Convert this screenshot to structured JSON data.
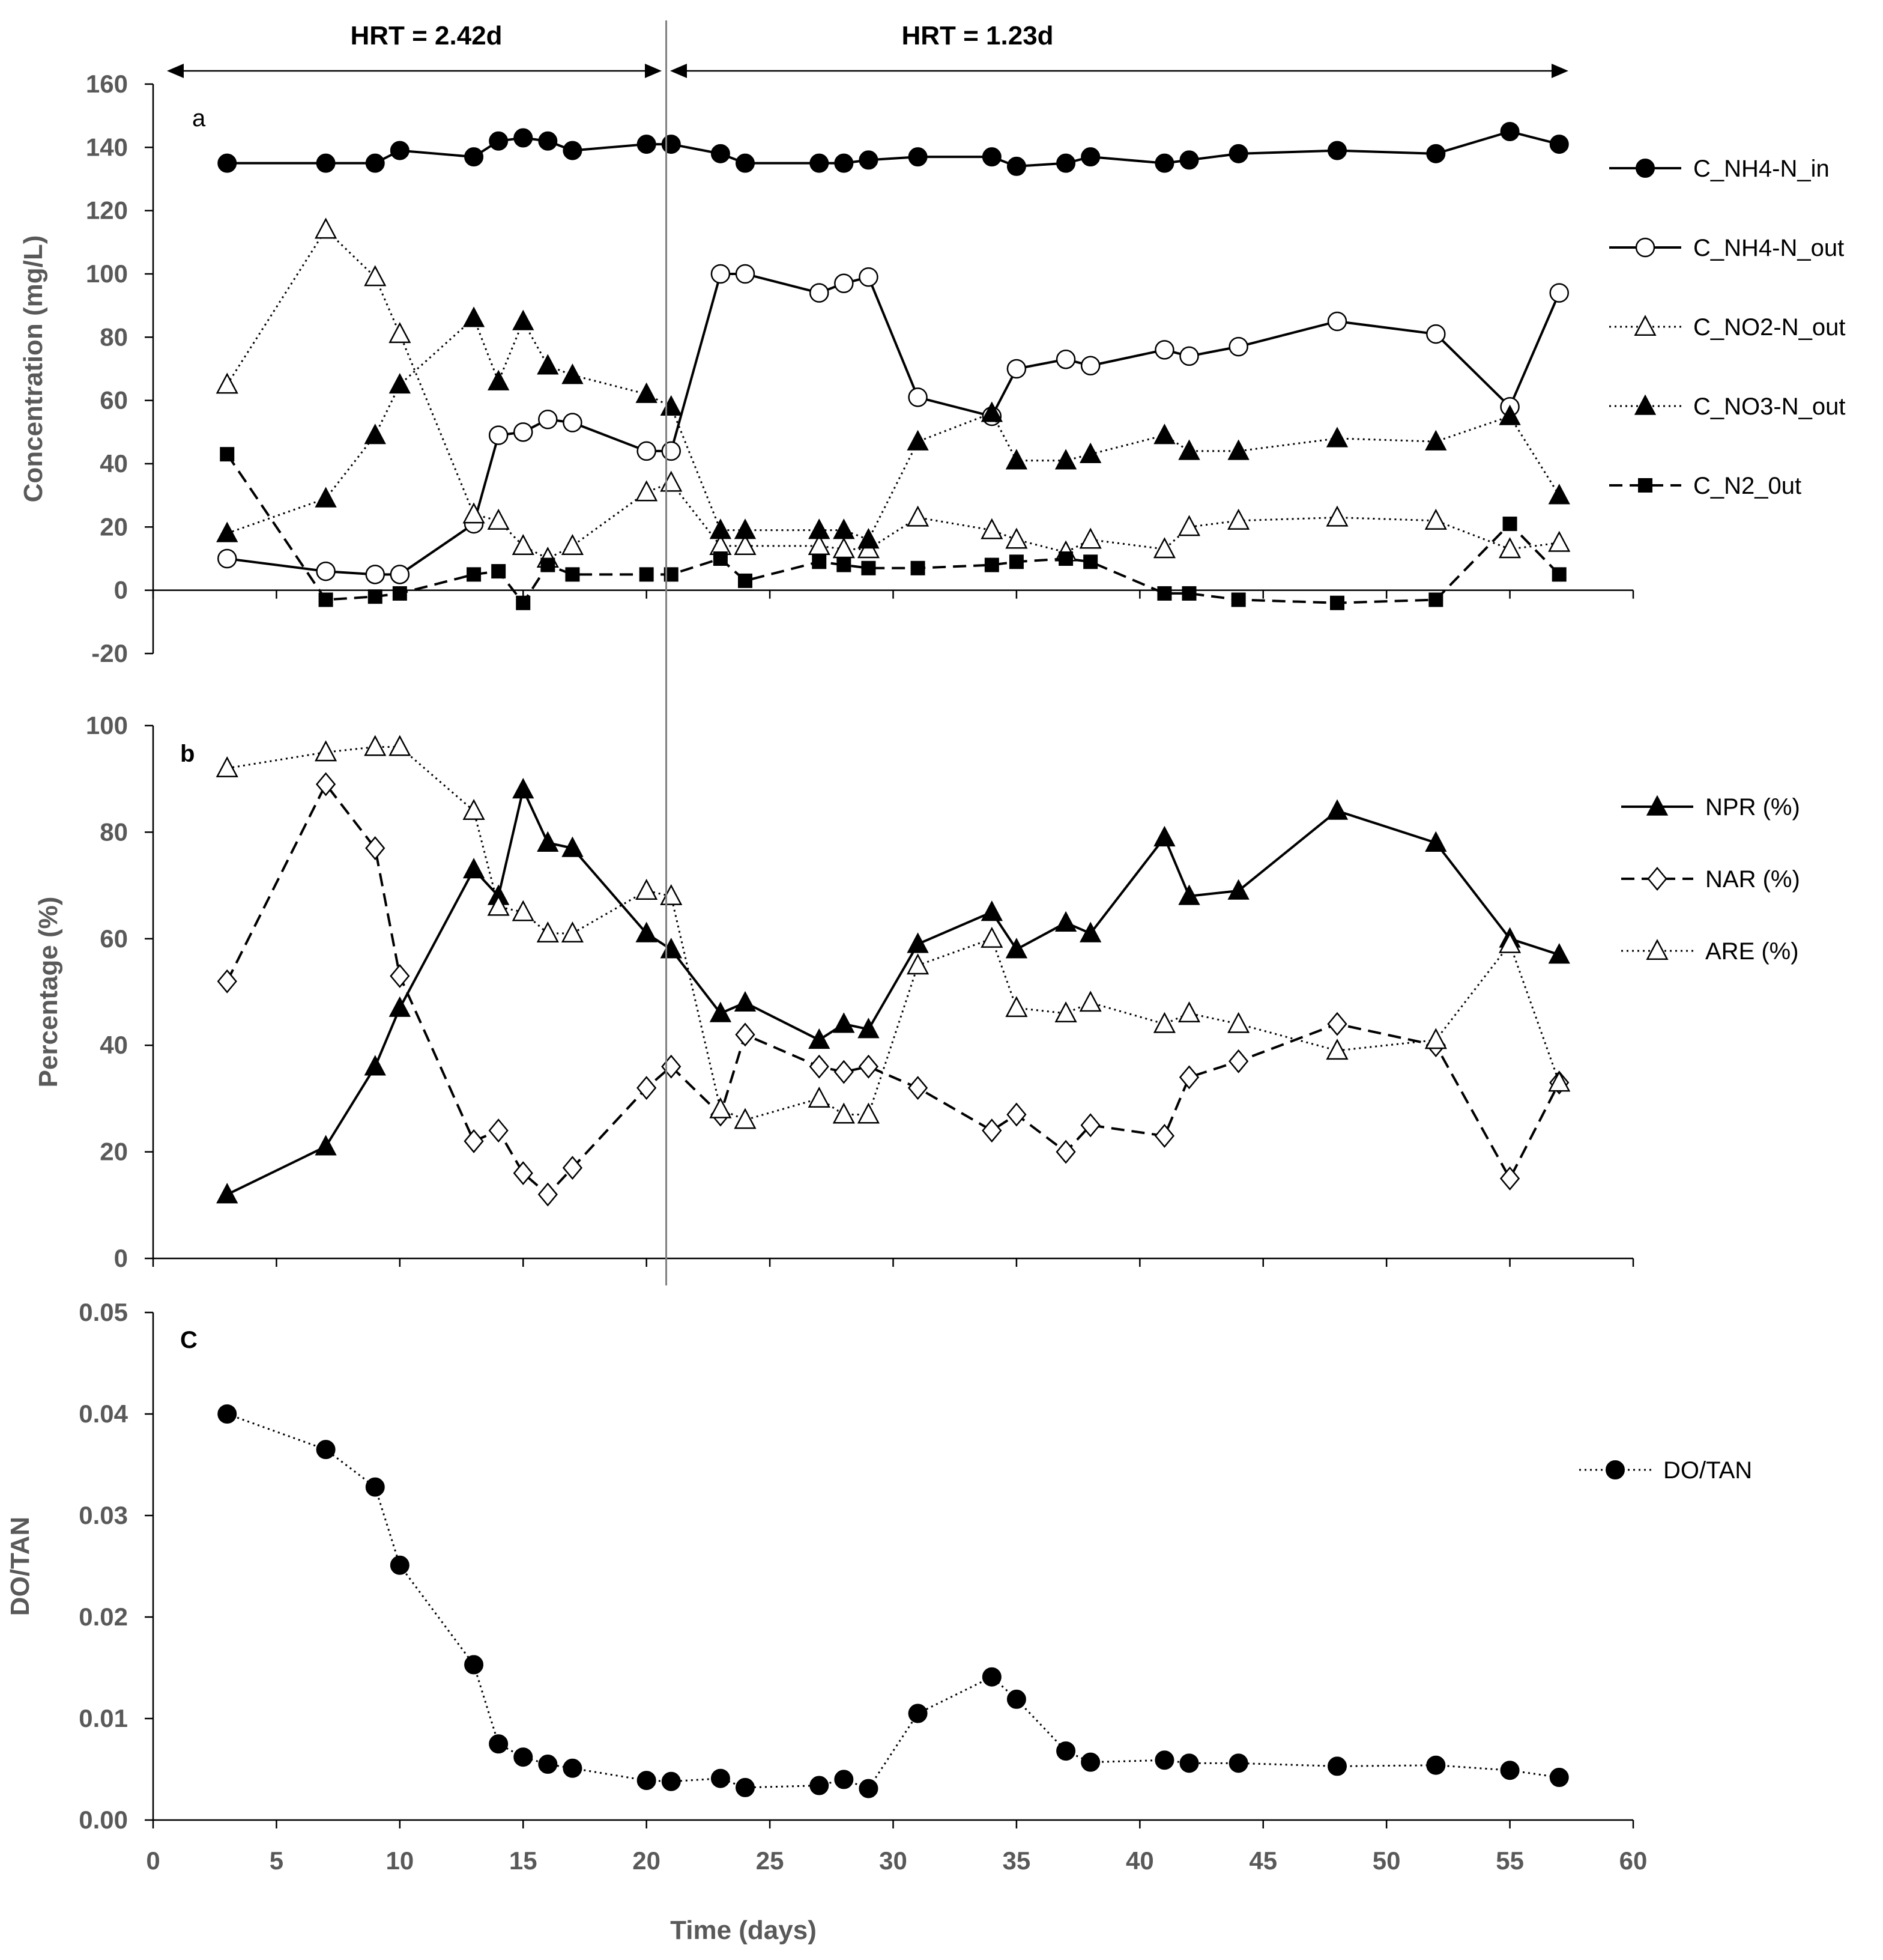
{
  "figure": {
    "hrt_left": "HRT = 2.42d",
    "hrt_right": "HRT = 1.23d",
    "hrt_switch_day": 20.8,
    "xlabel": "Time (days)",
    "xlim": [
      0,
      60
    ],
    "xticks": [
      "0",
      "5",
      "10",
      "15",
      "20",
      "25",
      "30",
      "35",
      "40",
      "45",
      "50",
      "55",
      "60"
    ]
  },
  "chart_data": [
    {
      "type": "line",
      "panel": "a",
      "ylabel": "Concentration (mg/L)",
      "ylim": [
        -20,
        160
      ],
      "yticks": [
        "-20",
        "0",
        "20",
        "40",
        "60",
        "80",
        "100",
        "120",
        "140",
        "160"
      ],
      "series": [
        {
          "name": "C_NH4-N_in",
          "line": "solid",
          "marker": "circle-filled",
          "x": [
            3,
            7,
            9,
            10,
            13,
            14,
            15,
            16,
            17,
            20,
            21,
            23,
            24,
            27,
            28,
            29,
            31,
            34,
            35,
            37,
            38,
            41,
            42,
            44,
            48,
            52,
            55,
            57
          ],
          "values": [
            135,
            135,
            135,
            139,
            137,
            142,
            143,
            142,
            139,
            141,
            141,
            138,
            135,
            135,
            135,
            136,
            137,
            137,
            134,
            135,
            137,
            135,
            136,
            138,
            139,
            138,
            145,
            141
          ]
        },
        {
          "name": "C_NH4-N_out",
          "line": "solid",
          "marker": "circle-open",
          "x": [
            3,
            7,
            9,
            10,
            13,
            14,
            15,
            16,
            17,
            20,
            21,
            23,
            24,
            27,
            28,
            29,
            31,
            34,
            35,
            37,
            38,
            41,
            42,
            44,
            48,
            52,
            55,
            57
          ],
          "values": [
            10,
            6,
            5,
            5,
            21,
            49,
            50,
            54,
            53,
            44,
            44,
            100,
            100,
            94,
            97,
            99,
            61,
            55,
            70,
            73,
            71,
            76,
            74,
            77,
            85,
            81,
            58,
            94
          ]
        },
        {
          "name": "C_NO2-N_out",
          "line": "dotted",
          "marker": "triangle-open",
          "x": [
            3,
            7,
            9,
            10,
            13,
            14,
            15,
            16,
            17,
            20,
            21,
            23,
            24,
            27,
            28,
            29,
            31,
            34,
            35,
            37,
            38,
            41,
            42,
            44,
            48,
            52,
            55,
            57
          ],
          "values": [
            65,
            114,
            99,
            81,
            24,
            22,
            14,
            10,
            14,
            31,
            34,
            14,
            14,
            14,
            13,
            13,
            23,
            19,
            16,
            12,
            16,
            13,
            20,
            22,
            23,
            22,
            13,
            15
          ]
        },
        {
          "name": "C_NO3-N_out",
          "line": "dotted",
          "marker": "triangle-filled",
          "x": [
            3,
            7,
            9,
            10,
            13,
            14,
            15,
            16,
            17,
            20,
            21,
            23,
            24,
            27,
            28,
            29,
            31,
            34,
            35,
            37,
            38,
            41,
            42,
            44,
            48,
            52,
            55,
            57
          ],
          "values": [
            18,
            29,
            49,
            65,
            86,
            66,
            85,
            71,
            68,
            62,
            58,
            19,
            19,
            19,
            19,
            16,
            47,
            56,
            41,
            41,
            43,
            49,
            44,
            44,
            48,
            47,
            55,
            30
          ]
        },
        {
          "name": "C_N2_0ut",
          "line": "dashed",
          "marker": "square-filled",
          "x": [
            3,
            7,
            9,
            10,
            13,
            14,
            15,
            16,
            17,
            20,
            21,
            23,
            24,
            27,
            28,
            29,
            31,
            34,
            35,
            37,
            38,
            41,
            42,
            44,
            48,
            52,
            55,
            57
          ],
          "values": [
            43,
            -3,
            -2,
            -1,
            5,
            6,
            -4,
            8,
            5,
            5,
            5,
            10,
            3,
            9,
            8,
            7,
            7,
            8,
            9,
            10,
            9,
            -1,
            -1,
            -3,
            -4,
            -3,
            21,
            5
          ]
        }
      ]
    },
    {
      "type": "line",
      "panel": "b",
      "ylabel": "Percentage (%)",
      "ylim": [
        0,
        100
      ],
      "yticks": [
        "0",
        "20",
        "40",
        "60",
        "80",
        "100"
      ],
      "series": [
        {
          "name": "NPR (%)",
          "line": "solid",
          "marker": "triangle-filled",
          "x": [
            3,
            7,
            9,
            10,
            13,
            14,
            15,
            16,
            17,
            20,
            21,
            23,
            24,
            27,
            28,
            29,
            31,
            34,
            35,
            37,
            38,
            41,
            42,
            44,
            48,
            52,
            55,
            57
          ],
          "values": [
            12,
            21,
            36,
            47,
            73,
            68,
            88,
            78,
            77,
            61,
            58,
            46,
            48,
            41,
            44,
            43,
            59,
            65,
            58,
            63,
            61,
            79,
            68,
            69,
            84,
            78,
            60,
            57
          ]
        },
        {
          "name": "NAR (%)",
          "line": "dashed",
          "marker": "diamond-open",
          "x": [
            3,
            7,
            9,
            10,
            13,
            14,
            15,
            16,
            17,
            20,
            21,
            23,
            24,
            27,
            28,
            29,
            31,
            34,
            35,
            37,
            38,
            41,
            42,
            44,
            48,
            52,
            55,
            57
          ],
          "values": [
            52,
            89,
            77,
            53,
            22,
            24,
            16,
            12,
            17,
            32,
            36,
            27,
            42,
            36,
            35,
            36,
            32,
            24,
            27,
            20,
            25,
            23,
            34,
            37,
            44,
            40,
            15,
            33
          ]
        },
        {
          "name": "ARE (%)",
          "line": "dotted",
          "marker": "triangle-open",
          "x": [
            3,
            7,
            9,
            10,
            13,
            14,
            15,
            16,
            17,
            20,
            21,
            23,
            24,
            27,
            28,
            29,
            31,
            34,
            35,
            37,
            38,
            41,
            42,
            44,
            48,
            52,
            55,
            57
          ],
          "values": [
            92,
            95,
            96,
            96,
            84,
            66,
            65,
            61,
            61,
            69,
            68,
            28,
            26,
            30,
            27,
            27,
            55,
            60,
            47,
            46,
            48,
            44,
            46,
            44,
            39,
            41,
            59,
            33
          ]
        }
      ]
    },
    {
      "type": "line",
      "panel": "C",
      "ylabel": "DO/TAN",
      "ylim": [
        0,
        0.05
      ],
      "yticks": [
        "0.00",
        "0.01",
        "0.02",
        "0.03",
        "0.04",
        "0.05"
      ],
      "series": [
        {
          "name": "DO/TAN",
          "line": "dotted",
          "marker": "circle-filled",
          "x": [
            3,
            7,
            9,
            10,
            13,
            14,
            15,
            16,
            17,
            20,
            21,
            23,
            24,
            27,
            28,
            29,
            31,
            34,
            35,
            37,
            38,
            41,
            42,
            44,
            48,
            52,
            55,
            57
          ],
          "values": [
            0.04,
            0.0365,
            0.0328,
            0.0251,
            0.0153,
            0.0075,
            0.0062,
            0.0055,
            0.0051,
            0.0039,
            0.0038,
            0.0041,
            0.0032,
            0.0034,
            0.004,
            0.0031,
            0.0105,
            0.0141,
            0.0119,
            0.0068,
            0.0057,
            0.0059,
            0.0056,
            0.0056,
            0.0053,
            0.0054,
            0.0049,
            0.0042
          ]
        }
      ]
    }
  ]
}
